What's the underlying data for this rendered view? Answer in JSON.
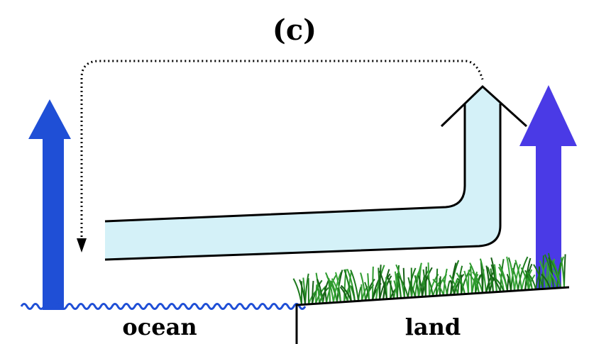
{
  "title": "(c)",
  "labels": {
    "ocean": "ocean",
    "land": "land"
  }
}
